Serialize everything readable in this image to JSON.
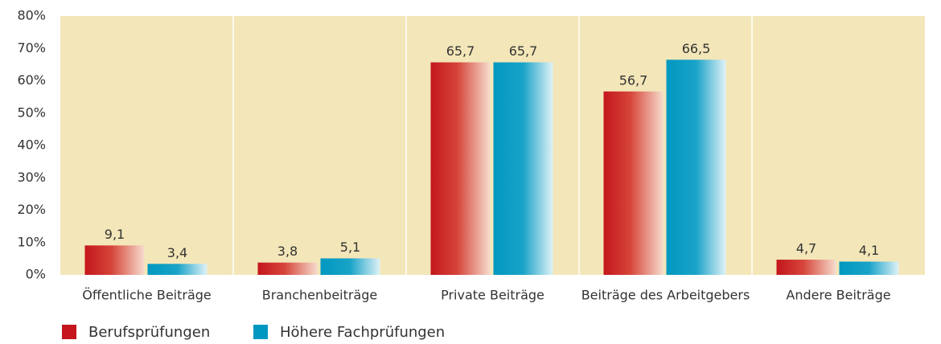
{
  "chart_data": {
    "type": "bar",
    "categories": [
      "Öffentliche Beiträge",
      "Branchenbeiträge",
      "Private Beiträge",
      "Beiträge des Arbeitgebers",
      "Andere Beiträge"
    ],
    "series": [
      {
        "name": "Berufsprüfungen",
        "color": "#c4161c",
        "values": [
          9.1,
          3.8,
          65.7,
          56.7,
          4.7
        ],
        "value_labels": [
          "9,1",
          "3,8",
          "65,7",
          "56,7",
          "4,7"
        ]
      },
      {
        "name": "Höhere Fachprüfungen",
        "color": "#0098c0",
        "values": [
          3.4,
          5.1,
          65.7,
          66.5,
          4.1
        ],
        "value_labels": [
          "3,4",
          "5,1",
          "65,7",
          "66,5",
          "4,1"
        ]
      }
    ],
    "ylim": [
      0,
      80
    ],
    "yticks": [
      {
        "value": 0,
        "label": "0%"
      },
      {
        "value": 10,
        "label": "10%"
      },
      {
        "value": 20,
        "label": "20%"
      },
      {
        "value": 30,
        "label": "30%"
      },
      {
        "value": 40,
        "label": "40%"
      },
      {
        "value": 50,
        "label": "50%"
      },
      {
        "value": 60,
        "label": "60%"
      },
      {
        "value": 70,
        "label": "70%"
      },
      {
        "value": 80,
        "label": "80%"
      }
    ],
    "grid": false,
    "legend": "bottom-left"
  }
}
